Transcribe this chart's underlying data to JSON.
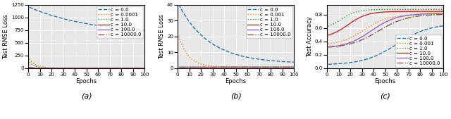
{
  "subplot_labels": [
    "(a)",
    "(b)",
    "(c)"
  ],
  "legend_labels_a": [
    "c = 0.0",
    "c = 0.0001",
    "c = 1.0",
    "c = 10.0",
    "c = 100.0",
    "c = 10000.0"
  ],
  "legend_labels_b": [
    "c = 0.0",
    "c = 0.001",
    "c = 1.0",
    "c = 10.0",
    "c = 100.0",
    "c = 10000.0"
  ],
  "legend_labels_c": [
    "c = 0.0",
    "c = 0.001",
    "c = 1.0",
    "c = 10.0",
    "c = 100.0",
    "c = 10000.0"
  ],
  "colors": [
    "#1f77b4",
    "#ff7f0e",
    "#2ca02c",
    "#d62728",
    "#9467bd",
    "#8c564b"
  ],
  "linestyles_a": [
    "--",
    ":",
    ":",
    "-",
    "-",
    "-."
  ],
  "linestyles_b": [
    "--",
    ":",
    ":",
    "-",
    "-",
    "-."
  ],
  "linestyles_c": [
    "--",
    ":",
    ":",
    "-",
    "-",
    "-."
  ],
  "ylabel_a": "Test RMSE Loss",
  "ylabel_b": "Test RMSE Loss",
  "ylabel_c": "Test Accuracy",
  "xlabel": "Epochs",
  "ylim_a": [
    0,
    1250
  ],
  "ylim_b": [
    0,
    40
  ],
  "ylim_c": [
    0.0,
    0.95
  ],
  "xlim": [
    0,
    100
  ],
  "bg_color": "#e8e8e8",
  "grid_color": "white",
  "figsize": [
    6.4,
    1.69
  ],
  "dpi": 100,
  "tick_fontsize": 5,
  "label_fontsize": 6,
  "legend_fontsize": 5,
  "subplot_label_fontsize": 8
}
